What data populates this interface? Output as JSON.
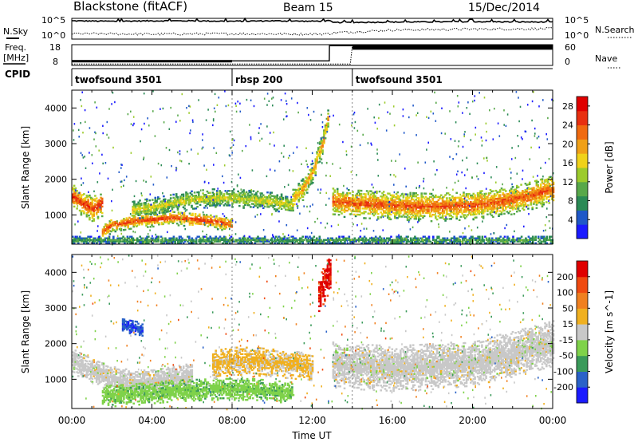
{
  "header": {
    "title": "Blackstone (fitACF)",
    "beam": "Beam 15",
    "date": "15/Dec/2014"
  },
  "left_labels": {
    "nsky": "N.Sky",
    "freq": "Freq.",
    "freq_unit": "[MHz]",
    "cpid": "CPID"
  },
  "right_labels": {
    "nsearch": "N.Search",
    "nave": "Nave"
  },
  "strip_ticks": {
    "noise_left": [
      "10^5",
      "10^0"
    ],
    "noise_right": [
      "10^5",
      "10^0"
    ],
    "freq_left": [
      "18",
      "8"
    ],
    "nave_right": [
      "60",
      "0"
    ]
  },
  "chart_data": [
    {
      "type": "line",
      "panel": "noise",
      "series": [
        {
          "name": "N.Sky",
          "x": [
            0,
            2,
            4,
            6,
            8,
            10,
            12,
            12.9,
            13.0,
            16,
            20,
            24
          ],
          "y": [
            4.4,
            4.3,
            4.4,
            4.4,
            4.3,
            4.4,
            4.3,
            4.4,
            4.0,
            4.1,
            4.2,
            4.1
          ]
        },
        {
          "name": "N.Search",
          "x": [
            0,
            4,
            8,
            12,
            12.9,
            13.0,
            16,
            20,
            24
          ],
          "y": [
            1.3,
            1.2,
            1.3,
            1.2,
            1.3,
            1.5,
            2.2,
            2.4,
            2.5
          ]
        }
      ],
      "ylim_log10": [
        0,
        5
      ],
      "xlim": [
        0,
        24
      ]
    },
    {
      "type": "line",
      "panel": "frequency_nave",
      "series": [
        {
          "name": "Freq.",
          "x": [
            0,
            12.85,
            12.86,
            24
          ],
          "y": [
            10.2,
            10.2,
            17.5,
            17.5
          ],
          "unit": "MHz"
        },
        {
          "name": "Nave",
          "x": [
            0,
            13.9,
            14.0,
            24
          ],
          "y": [
            4,
            4,
            57,
            57
          ]
        }
      ],
      "freq_ylim": [
        8,
        18
      ],
      "nave_ylim": [
        0,
        60
      ],
      "xlim": [
        0,
        24
      ]
    },
    {
      "type": "table",
      "panel": "cpid",
      "segments": [
        {
          "label": "twofsound 3501",
          "start": 0,
          "end": 8.0
        },
        {
          "label": "rbsp 200",
          "start": 8.0,
          "end": 14.0
        },
        {
          "label": "twofsound 3501",
          "start": 14.0,
          "end": 24
        }
      ]
    },
    {
      "type": "heatmap",
      "panel": "power",
      "ylabel": "Slant Range [km]",
      "xlim": [
        0,
        24
      ],
      "ylim": [
        180,
        4500
      ],
      "yticks": [
        "1000",
        "2000",
        "3000",
        "4000"
      ],
      "colorbar": {
        "label": "Power [dB]",
        "ticks": [
          "4",
          "8",
          "12",
          "16",
          "20",
          "24",
          "28"
        ],
        "range": [
          0,
          30
        ]
      },
      "bands": [
        {
          "t": [
            0,
            0.5,
            1,
            1.5
          ],
          "center": [
            1500,
            1300,
            1150,
            1300
          ],
          "width": 350,
          "value": 26
        },
        {
          "t": [
            1.5,
            2,
            3,
            4,
            5,
            6,
            7,
            8
          ],
          "center": [
            500,
            700,
            800,
            850,
            900,
            850,
            800,
            700
          ],
          "width": 200,
          "value": 25
        },
        {
          "t": [
            3,
            4,
            5,
            6,
            7,
            8,
            9,
            10,
            11
          ],
          "center": [
            1100,
            1200,
            1300,
            1400,
            1450,
            1450,
            1400,
            1350,
            1250
          ],
          "width": 250,
          "value": 16
        },
        {
          "t": [
            11,
            11.5,
            12,
            12.5,
            12.8
          ],
          "center": [
            1400,
            1700,
            2200,
            3000,
            3800
          ],
          "width": 300,
          "value": 20
        },
        {
          "t": [
            13,
            14,
            16,
            18,
            20,
            22,
            24
          ],
          "center": [
            1350,
            1300,
            1250,
            1200,
            1250,
            1400,
            1700
          ],
          "width": 400,
          "value": 24
        },
        {
          "t": [
            0,
            24
          ],
          "center": [
            260,
            260
          ],
          "width": 120,
          "value": 10
        }
      ]
    },
    {
      "type": "heatmap",
      "panel": "velocity",
      "ylabel": "Slant Range [km]",
      "xlabel": "Time UT",
      "xlim": [
        0,
        24
      ],
      "ylim": [
        180,
        4500
      ],
      "xticks": [
        "00:00",
        "04:00",
        "08:00",
        "12:00",
        "16:00",
        "20:00",
        "00:00"
      ],
      "yticks": [
        "1000",
        "2000",
        "3000",
        "4000"
      ],
      "colorbar": {
        "label": "Velocity [m s^-1]",
        "ticks": [
          "200",
          "100",
          "50",
          "15",
          "-15",
          "-50",
          "-100",
          "-200"
        ],
        "range": [
          -250,
          250
        ]
      },
      "bands": [
        {
          "t": [
            0,
            1,
            2,
            3,
            4,
            5,
            6
          ],
          "center": [
            1500,
            1200,
            1000,
            900,
            900,
            1000,
            1100
          ],
          "width": 350,
          "value": 0
        },
        {
          "t": [
            1.5,
            3,
            5,
            7,
            9,
            11
          ],
          "center": [
            500,
            550,
            650,
            700,
            700,
            600
          ],
          "width": 300,
          "value": -60
        },
        {
          "t": [
            2.5,
            3,
            3.5
          ],
          "center": [
            2500,
            2450,
            2400
          ],
          "width": 200,
          "value": -180
        },
        {
          "t": [
            7,
            8,
            9,
            10,
            11,
            12
          ],
          "center": [
            1400,
            1500,
            1500,
            1450,
            1400,
            1300
          ],
          "width": 400,
          "value": 40
        },
        {
          "t": [
            12.3,
            12.6,
            12.9
          ],
          "center": [
            3300,
            3700,
            4000
          ],
          "width": 500,
          "value": 210
        },
        {
          "t": [
            13,
            14,
            16,
            18,
            20,
            22,
            24
          ],
          "center": [
            1400,
            1350,
            1300,
            1350,
            1450,
            1700,
            2000
          ],
          "width": 650,
          "value": 0
        }
      ]
    }
  ],
  "colors": {
    "power_scale": [
      "#1a1aff",
      "#1f58c8",
      "#2a8a55",
      "#58a84a",
      "#9ccb2c",
      "#f0d21a",
      "#f0a018",
      "#f06a10",
      "#e83010",
      "#e00000"
    ],
    "velocity_scale": [
      "#1a1aff",
      "#2a62c8",
      "#3a9a5a",
      "#7fd24a",
      "#c8c8c8",
      "#f0b020",
      "#f08020",
      "#f04a10",
      "#e00000"
    ]
  }
}
